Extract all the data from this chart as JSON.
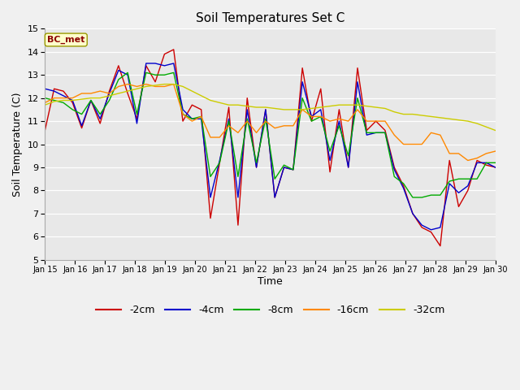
{
  "title": "Soil Temperatures Set C",
  "xlabel": "Time",
  "ylabel": "Soil Temperature (C)",
  "ylim": [
    5.0,
    15.0
  ],
  "yticks": [
    5.0,
    6.0,
    7.0,
    8.0,
    9.0,
    10.0,
    11.0,
    12.0,
    13.0,
    14.0,
    15.0
  ],
  "annotation": "BC_met",
  "colors": {
    "-2cm": "#cc0000",
    "-4cm": "#0000cc",
    "-8cm": "#00aa00",
    "-16cm": "#ff8800",
    "-32cm": "#cccc00"
  },
  "xtick_labels": [
    "Jan 15",
    "Jan 16",
    "Jan 17",
    "Jan 18",
    "Jan 19",
    "Jan 20",
    "Jan 21",
    "Jan 22",
    "Jan 23",
    "Jan 24",
    "Jan 25",
    "Jan 26",
    "Jan 27",
    "Jan 28",
    "Jan 29",
    "Jan 30"
  ],
  "series": {
    "-2cm": [
      10.6,
      12.4,
      12.3,
      11.8,
      10.7,
      11.9,
      10.9,
      12.3,
      13.4,
      12.2,
      11.1,
      13.4,
      12.7,
      13.9,
      14.1,
      11.0,
      11.7,
      11.5,
      6.8,
      9.2,
      11.6,
      6.5,
      12.0,
      9.0,
      11.5,
      7.7,
      9.0,
      8.9,
      13.3,
      11.0,
      12.4,
      8.8,
      11.5,
      9.0,
      13.3,
      10.6,
      11.0,
      10.6,
      9.0,
      8.2,
      7.0,
      6.4,
      6.2,
      5.6,
      9.3,
      7.3,
      8.0,
      9.3,
      9.1,
      9.0
    ],
    "-4cm": [
      12.4,
      12.3,
      12.1,
      11.9,
      10.8,
      11.9,
      11.1,
      12.2,
      13.2,
      13.0,
      10.9,
      13.5,
      13.5,
      13.4,
      13.5,
      11.5,
      11.1,
      11.1,
      7.7,
      9.3,
      11.1,
      7.7,
      11.5,
      9.0,
      11.5,
      7.7,
      9.0,
      8.9,
      12.7,
      11.2,
      11.5,
      9.3,
      11.0,
      9.0,
      12.7,
      10.4,
      10.5,
      10.5,
      8.9,
      8.1,
      7.0,
      6.5,
      6.3,
      6.4,
      8.3,
      7.9,
      8.2,
      9.2,
      9.2,
      9.0
    ],
    "-8cm": [
      12.0,
      11.9,
      11.8,
      11.5,
      11.3,
      11.9,
      11.3,
      11.9,
      12.8,
      13.1,
      11.3,
      13.1,
      13.0,
      13.0,
      13.1,
      11.3,
      11.1,
      11.2,
      8.6,
      9.2,
      11.0,
      8.6,
      11.1,
      9.2,
      11.1,
      8.5,
      9.1,
      8.9,
      12.0,
      11.0,
      11.2,
      9.7,
      10.8,
      9.5,
      12.0,
      10.5,
      10.5,
      10.5,
      8.6,
      8.3,
      7.7,
      7.7,
      7.8,
      7.8,
      8.4,
      8.5,
      8.5,
      8.5,
      9.2,
      9.2
    ],
    "-16cm": [
      11.8,
      12.0,
      12.0,
      12.0,
      12.2,
      12.2,
      12.3,
      12.2,
      12.5,
      12.6,
      12.5,
      12.6,
      12.5,
      12.5,
      12.6,
      11.3,
      11.0,
      11.2,
      10.3,
      10.3,
      10.8,
      10.5,
      11.0,
      10.5,
      11.0,
      10.7,
      10.8,
      10.8,
      11.5,
      11.2,
      11.2,
      11.0,
      11.1,
      11.0,
      11.5,
      11.0,
      11.0,
      11.0,
      10.4,
      10.0,
      10.0,
      10.0,
      10.5,
      10.4,
      9.6,
      9.6,
      9.3,
      9.4,
      9.6,
      9.7
    ],
    "-32cm": [
      11.7,
      11.85,
      11.9,
      11.9,
      11.95,
      12.0,
      12.0,
      12.1,
      12.2,
      12.3,
      12.4,
      12.5,
      12.55,
      12.6,
      12.6,
      12.5,
      12.3,
      12.1,
      11.9,
      11.8,
      11.7,
      11.7,
      11.65,
      11.6,
      11.6,
      11.55,
      11.5,
      11.5,
      11.5,
      11.55,
      11.6,
      11.65,
      11.7,
      11.7,
      11.7,
      11.65,
      11.6,
      11.55,
      11.4,
      11.3,
      11.3,
      11.25,
      11.2,
      11.15,
      11.1,
      11.05,
      11.0,
      10.9,
      10.75,
      10.6
    ]
  }
}
